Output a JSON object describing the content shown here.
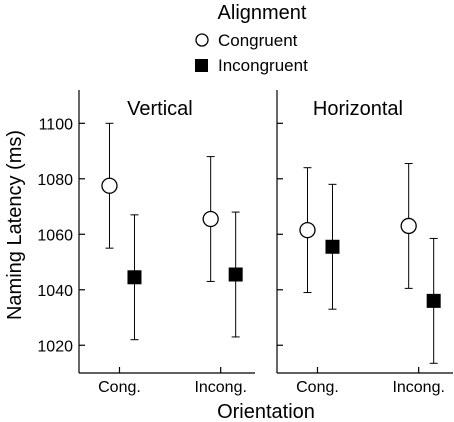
{
  "chart_data": {
    "type": "scatter",
    "legend_title": "Alignment",
    "legend_placement": "top-center",
    "ylabel": "Naming Latency (ms)",
    "xlabel": "Orientation",
    "ylim": [
      1010,
      1112
    ],
    "yticks": [
      1020,
      1040,
      1060,
      1080,
      1100
    ],
    "categories": [
      "Cong.",
      "Incong."
    ],
    "series": [
      {
        "name": "Congruent",
        "marker": "open-circle"
      },
      {
        "name": "Incongruent",
        "marker": "filled-square"
      }
    ],
    "panels": [
      {
        "title": "Vertical",
        "points": [
          {
            "category": "Cong.",
            "series": "Congruent",
            "mean": 1077.5,
            "lower": 1055,
            "upper": 1100
          },
          {
            "category": "Cong.",
            "series": "Incongruent",
            "mean": 1044.5,
            "lower": 1022,
            "upper": 1067
          },
          {
            "category": "Incong.",
            "series": "Congruent",
            "mean": 1065.5,
            "lower": 1043,
            "upper": 1088
          },
          {
            "category": "Incong.",
            "series": "Incongruent",
            "mean": 1045.5,
            "lower": 1023,
            "upper": 1068
          }
        ]
      },
      {
        "title": "Horizontal",
        "points": [
          {
            "category": "Cong.",
            "series": "Congruent",
            "mean": 1061.5,
            "lower": 1039,
            "upper": 1084
          },
          {
            "category": "Cong.",
            "series": "Incongruent",
            "mean": 1055.5,
            "lower": 1033,
            "upper": 1078
          },
          {
            "category": "Incong.",
            "series": "Congruent",
            "mean": 1063,
            "lower": 1040.5,
            "upper": 1085.5
          },
          {
            "category": "Incong.",
            "series": "Incongruent",
            "mean": 1036,
            "lower": 1013.5,
            "upper": 1058.5
          }
        ]
      }
    ]
  }
}
